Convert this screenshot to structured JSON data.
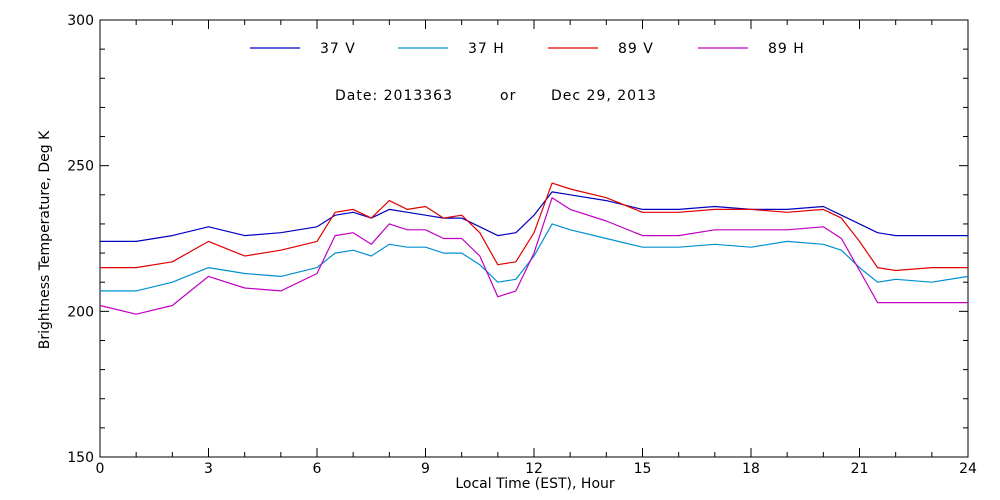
{
  "chart_data": {
    "type": "line",
    "title": "",
    "annotation": {
      "date_label": "Date: 2013363",
      "or_label": "or",
      "date_text": "Dec 29, 2013"
    },
    "xlabel": "Local Time (EST), Hour",
    "ylabel": "Brightness Temperature, Deg K",
    "xlim": [
      0,
      24
    ],
    "ylim": [
      150,
      300
    ],
    "xticks": [
      0,
      3,
      6,
      9,
      12,
      15,
      18,
      21,
      24
    ],
    "xtick_labels": [
      "0",
      "3",
      "6",
      "9",
      "12",
      "15",
      "18",
      "21",
      "24"
    ],
    "yticks": [
      150,
      200,
      250,
      300
    ],
    "ytick_labels": [
      "150",
      "200",
      "250",
      "300"
    ],
    "grid": false,
    "legend_position": "top",
    "x": [
      0,
      1,
      2,
      3,
      4,
      5,
      6,
      6.5,
      7,
      7.5,
      8,
      8.5,
      9,
      9.5,
      10,
      10.5,
      11,
      11.5,
      12,
      12.5,
      13,
      14,
      15,
      16,
      17,
      18,
      19,
      20,
      20.5,
      21,
      21.5,
      22,
      23,
      24
    ],
    "series": [
      {
        "name": "37 V",
        "color": "#0000c0",
        "values": [
          224,
          224,
          226,
          229,
          226,
          227,
          229,
          233,
          234,
          232,
          235,
          234,
          233,
          232,
          232,
          229,
          226,
          227,
          233,
          241,
          240,
          238,
          235,
          235,
          236,
          235,
          235,
          236,
          233,
          230,
          227,
          226,
          226,
          226
        ]
      },
      {
        "name": "37 H",
        "color": "#0090d0",
        "values": [
          207,
          207,
          210,
          215,
          213,
          212,
          215,
          220,
          221,
          219,
          223,
          222,
          222,
          220,
          220,
          216,
          210,
          211,
          219,
          230,
          228,
          225,
          222,
          222,
          223,
          222,
          224,
          223,
          221,
          215,
          210,
          211,
          210,
          212
        ]
      },
      {
        "name": "89 V",
        "color": "#e00000",
        "values": [
          215,
          215,
          217,
          224,
          219,
          221,
          224,
          234,
          235,
          232,
          238,
          235,
          236,
          232,
          233,
          227,
          216,
          217,
          227,
          244,
          242,
          239,
          234,
          234,
          235,
          235,
          234,
          235,
          232,
          224,
          215,
          214,
          215,
          215
        ]
      },
      {
        "name": "89 H",
        "color": "#c000c0",
        "values": [
          202,
          199,
          202,
          212,
          208,
          207,
          213,
          226,
          227,
          223,
          230,
          228,
          228,
          225,
          225,
          219,
          205,
          207,
          220,
          239,
          235,
          231,
          226,
          226,
          228,
          228,
          228,
          229,
          225,
          214,
          203,
          203,
          203,
          203
        ]
      }
    ]
  }
}
